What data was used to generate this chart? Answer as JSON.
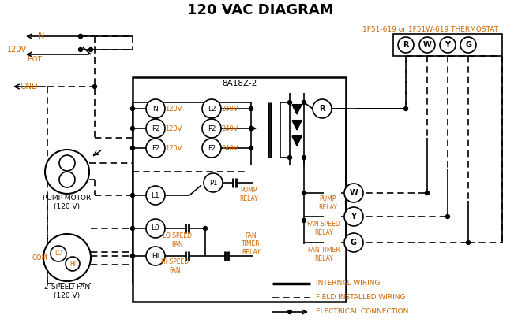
{
  "title": "120 VAC DIAGRAM",
  "title_fontsize": 14,
  "title_fontweight": "bold",
  "bg_color": "#ffffff",
  "line_color": "#000000",
  "orange_color": "#cc6600",
  "thermostat_label": "1F51-619 or 1F51W-619 THERMOSTAT",
  "controller_label": "8A18Z-2",
  "terminal_labels": [
    "R",
    "W",
    "Y",
    "G"
  ],
  "pump_motor_label": "PUMP MOTOR\n(120 V)",
  "fan_label": "2-SPEED FAN\n(120 V)"
}
